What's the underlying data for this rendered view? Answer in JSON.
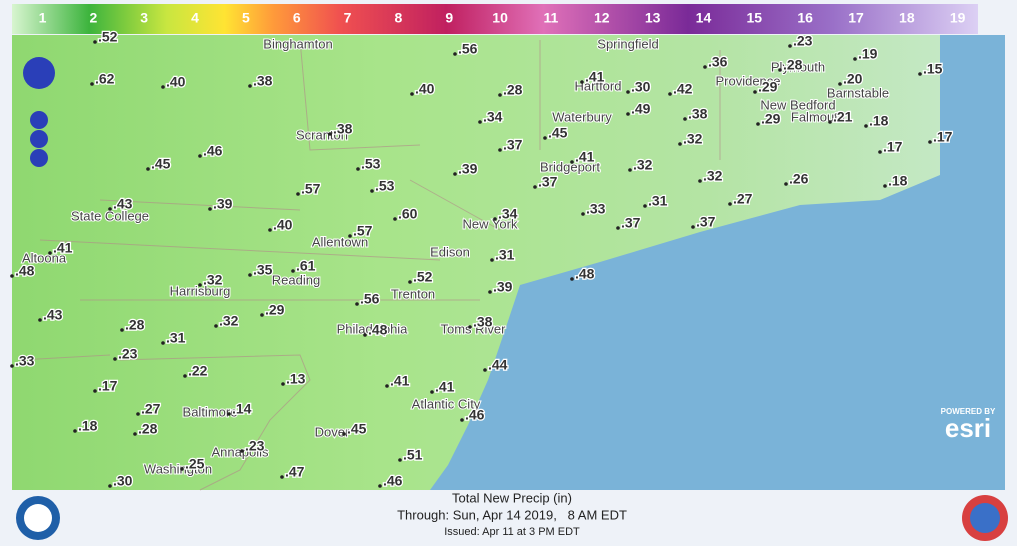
{
  "legend": {
    "values": [
      1,
      2,
      3,
      4,
      5,
      6,
      7,
      8,
      9,
      10,
      11,
      12,
      13,
      14,
      15,
      16,
      17,
      18,
      19
    ]
  },
  "map": {
    "cities": [
      "Binghamton",
      "Springfield",
      "Providence",
      "Plymouth",
      "New Bedford",
      "Barnstable",
      "Falmouth",
      "Hartford",
      "Waterbury",
      "Scranton",
      "Bridgeport",
      "State College",
      "Allentown",
      "New York",
      "Edison",
      "Altoona",
      "Reading",
      "Harrisburg",
      "Trenton",
      "Philadelphia",
      "Toms River",
      "Atlantic City",
      "Baltimore",
      "Dover",
      "Annapolis",
      "Washington"
    ],
    "precip_labels": [
      ".62",
      ".40",
      ".38",
      ".40",
      ".28",
      ".41",
      ".30",
      ".42",
      ".36",
      ".29",
      ".28",
      ".20",
      ".15",
      ".19",
      ".23",
      ".56",
      ".52",
      ".34",
      ".49",
      ".38",
      ".29",
      ".21",
      ".18",
      ".45",
      ".37",
      ".38",
      ".32",
      ".17",
      ".17",
      ".46",
      ".45",
      ".53",
      ".39",
      ".41",
      ".32",
      ".32",
      ".26",
      ".18",
      ".37",
      ".57",
      ".53",
      ".27",
      ".31",
      ".43",
      ".39",
      ".60",
      ".33",
      ".34",
      ".37",
      ".37",
      ".40",
      ".57",
      ".41",
      ".31",
      ".48",
      ".61",
      ".35",
      ".52",
      ".32",
      ".48",
      ".39",
      ".56",
      ".29",
      ".43",
      ".28",
      ".32",
      ".31",
      ".48",
      ".38",
      ".33",
      ".23",
      ".22",
      ".44",
      ".13",
      ".41",
      ".41",
      ".17",
      ".27",
      ".14",
      ".46",
      ".18",
      ".28",
      ".45",
      ".23",
      ".25",
      ".51",
      ".47",
      ".30",
      ".46"
    ],
    "powered_by": "POWERED BY",
    "esri": "esri"
  },
  "footer": {
    "title": "Total New Precip (in)",
    "through": "Through: Sun, Apr 14 2019,   8 AM EDT",
    "issued": "Issued: Apr 11 at 3 PM EDT"
  }
}
